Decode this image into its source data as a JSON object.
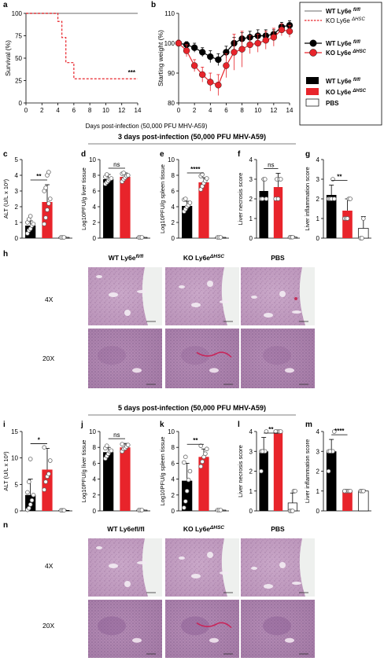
{
  "panel_letters": {
    "a": "a",
    "b": "b",
    "c": "c",
    "d": "d",
    "e": "e",
    "f": "f",
    "g": "g",
    "h": "h",
    "i": "i",
    "j": "j",
    "k": "k",
    "l": "l",
    "m": "m",
    "n": "n"
  },
  "legend": {
    "line_wt": "WT Ly6e",
    "line_wt_sup": "fl/fl",
    "line_ko": "KO Ly6e",
    "line_ko_sup": "ΔHSC",
    "point_wt": "WT Ly6e",
    "point_wt_sup": "fl/fl",
    "point_ko": "KO Ly6e",
    "point_ko_sup": "ΔHSC",
    "bar_wt": "WT Ly6e",
    "bar_wt_sup": "fl/fl",
    "bar_ko": "KO Ly6e",
    "bar_ko_sup": "ΔHSC",
    "bar_pbs": "PBS"
  },
  "shared_xlabel": "Days post-infection (50,000 PFU MHV-A59)",
  "section_titles": {
    "day3": "3 days post-infection (50,000 PFU MHV-A59)",
    "day5": "5 days post-infection (50,000 PFU MHV-A59)"
  },
  "histology": {
    "wt_label": "WT Ly6e",
    "wt_sup": "fl/fl",
    "ko_label": "KO Ly6e",
    "ko_sup": "ΔHSC",
    "pbs_label": "PBS",
    "wt_label_n": "WT Ly6efl/fl",
    "mag_4x": "4X",
    "mag_20x": "20X"
  },
  "colors": {
    "wt": "#000000",
    "ko": "#e8242b",
    "pbs": "#ffffff"
  },
  "chart_data": [
    {
      "panel": "a",
      "type": "line",
      "ylabel": "Survival (%)",
      "xlabel": "Days post-infection (50,000 PFU MHV-A59)",
      "xlim": [
        0,
        14
      ],
      "ylim": [
        0,
        100
      ],
      "xticks": [
        0,
        2,
        4,
        6,
        8,
        10,
        12,
        14
      ],
      "yticks": [
        0,
        25,
        50,
        75,
        100
      ],
      "series": [
        {
          "name": "WT Ly6e fl/fl",
          "style": "solid",
          "color": "#888888",
          "x": [
            0,
            14
          ],
          "y": [
            100,
            100
          ]
        },
        {
          "name": "KO Ly6e ΔHSC",
          "style": "dashed",
          "color": "#e8242b",
          "step": true,
          "x": [
            0,
            4,
            4.5,
            5,
            6,
            14
          ],
          "y": [
            100,
            91,
            73,
            45,
            27,
            27
          ]
        }
      ],
      "annotations": [
        {
          "text": "***",
          "x": 14,
          "y": 27
        }
      ]
    },
    {
      "panel": "b",
      "type": "line",
      "ylabel": "Starting weight (%)",
      "xlabel": "Days post-infection (50,000 PFU MHV-A59)",
      "xlim": [
        0,
        14
      ],
      "ylim": [
        80,
        110
      ],
      "xticks": [
        0,
        2,
        4,
        6,
        8,
        10,
        12,
        14
      ],
      "yticks": [
        80,
        90,
        100,
        110
      ],
      "series": [
        {
          "name": "WT Ly6e fl/fl",
          "color": "#000000",
          "x": [
            0,
            1,
            2,
            3,
            4,
            5,
            6,
            7,
            8,
            9,
            10,
            11,
            12,
            13,
            14
          ],
          "y": [
            100,
            99.5,
            98.5,
            97,
            95.5,
            94.5,
            97,
            100,
            101.5,
            102,
            102.5,
            102.5,
            103,
            105.5,
            106
          ],
          "err": [
            1,
            1,
            1.5,
            1.5,
            2,
            2,
            2,
            2,
            2,
            2,
            2,
            2,
            1.5,
            1.5,
            1.5
          ]
        },
        {
          "name": "KO Ly6e ΔHSC",
          "color": "#e8242b",
          "x": [
            0,
            1,
            2,
            3,
            4,
            5,
            6,
            7,
            8,
            9,
            10,
            11,
            12,
            13,
            14
          ],
          "y": [
            100,
            97.5,
            92.5,
            89.5,
            87,
            86,
            92.5,
            97,
            98,
            99.5,
            100,
            101,
            102,
            104.5,
            104
          ],
          "err": [
            1,
            2,
            2,
            2.5,
            3,
            3.5,
            4,
            6,
            6,
            3,
            3,
            3,
            3,
            2,
            2
          ]
        }
      ]
    },
    {
      "panel": "c",
      "type": "bar",
      "ylabel": "ALT (U/L x 10³)",
      "ylim": [
        0,
        5
      ],
      "yticks": [
        0,
        1,
        2,
        3,
        4,
        5
      ],
      "categories": [
        "WT",
        "KO",
        "PBS"
      ],
      "values": [
        0.8,
        2.3,
        0.05
      ],
      "err": [
        0.3,
        1.1,
        0.05
      ],
      "points": [
        [
          0.3,
          0.5,
          0.6,
          0.8,
          0.9,
          1.0,
          1.2,
          1.4
        ],
        [
          0.9,
          1.3,
          1.8,
          2.2,
          2.5,
          3.0,
          3.2,
          4.0,
          4.2
        ],
        [
          0.05,
          0.05,
          0.05
        ]
      ],
      "sig": "**"
    },
    {
      "panel": "d",
      "type": "bar",
      "ylabel": "Log10PFU/g liver tissue",
      "ylim": [
        0,
        10
      ],
      "yticks": [
        0,
        2,
        4,
        6,
        8,
        10
      ],
      "categories": [
        "WT",
        "KO",
        "PBS"
      ],
      "values": [
        7.5,
        7.8,
        0.1
      ],
      "err": [
        0.6,
        0.5,
        0.05
      ],
      "points": [
        [
          6.9,
          7.1,
          7.3,
          7.5,
          7.6,
          7.8,
          8.1
        ],
        [
          7.2,
          7.5,
          7.7,
          7.9,
          8.0,
          8.2,
          8.3
        ],
        [
          0.1,
          0.1,
          0.1
        ]
      ],
      "sig": "ns"
    },
    {
      "panel": "e",
      "type": "bar",
      "ylabel": "Log10PFU/g spleen tissue",
      "ylim": [
        0,
        10
      ],
      "yticks": [
        0,
        2,
        4,
        6,
        8,
        10
      ],
      "categories": [
        "WT",
        "KO",
        "PBS"
      ],
      "values": [
        4.1,
        7.1,
        0.1
      ],
      "err": [
        0.6,
        0.6,
        0.05
      ],
      "points": [
        [
          3.4,
          3.7,
          4.0,
          4.2,
          4.5,
          4.9,
          5.0
        ],
        [
          6.2,
          6.6,
          7.0,
          7.3,
          7.6,
          7.9,
          8.1
        ],
        [
          0.1,
          0.1,
          0.1
        ]
      ],
      "sig": "****"
    },
    {
      "panel": "f",
      "type": "bar",
      "ylabel": "Liver necrosis score",
      "ylim": [
        0,
        4
      ],
      "yticks": [
        0,
        1,
        2,
        3,
        4
      ],
      "categories": [
        "WT",
        "KO",
        "PBS"
      ],
      "values": [
        2.4,
        2.6,
        0.05
      ],
      "err": [
        0.6,
        0.7,
        0.05
      ],
      "points": [
        [
          2,
          2,
          3,
          3,
          2
        ],
        [
          2,
          3,
          2,
          3,
          3
        ],
        [
          0.05,
          0.05,
          0.05
        ]
      ],
      "sig": "ns"
    },
    {
      "panel": "g",
      "type": "bar",
      "ylabel": "Liver inflammation score",
      "ylim": [
        0,
        4
      ],
      "yticks": [
        0,
        1,
        2,
        3,
        4
      ],
      "categories": [
        "WT",
        "KO",
        "PBS"
      ],
      "values": [
        2.2,
        1.4,
        0.5
      ],
      "err": [
        0.5,
        0.6,
        0.6
      ],
      "points": [
        [
          2,
          2,
          2,
          3,
          2
        ],
        [
          1,
          1,
          1,
          2,
          2
        ],
        [
          0,
          0,
          1
        ]
      ],
      "sig": "**"
    },
    {
      "panel": "i",
      "type": "bar",
      "ylabel": "ALT (U/L x 10³)",
      "ylim": [
        0,
        15
      ],
      "yticks": [
        0,
        5,
        10,
        15
      ],
      "categories": [
        "WT",
        "KO",
        "PBS"
      ],
      "values": [
        3.0,
        7.8,
        0.1
      ],
      "err": [
        3.0,
        4.0,
        0.1
      ],
      "points": [
        [
          0.2,
          0.5,
          1.2,
          2.0,
          3.0,
          3.5,
          5.5,
          9.8
        ],
        [
          4.0,
          5.5,
          6.5,
          7.0,
          9.5,
          12.0
        ],
        [
          0.1,
          0.1,
          0.1
        ]
      ],
      "sig": "*"
    },
    {
      "panel": "j",
      "type": "bar",
      "ylabel": "Log10PFU/g liver tissue",
      "ylim": [
        0,
        10
      ],
      "yticks": [
        0,
        2,
        4,
        6,
        8,
        10
      ],
      "categories": [
        "WT",
        "KO",
        "PBS"
      ],
      "values": [
        7.4,
        8.0,
        0.1
      ],
      "err": [
        0.6,
        0.5,
        0.05
      ],
      "points": [
        [
          6.6,
          6.9,
          7.2,
          7.5,
          7.6,
          7.9,
          8.2
        ],
        [
          7.5,
          7.8,
          7.9,
          8.1,
          8.3,
          8.4
        ],
        [
          0.1,
          0.1,
          0.1
        ]
      ],
      "sig": "ns"
    },
    {
      "panel": "k",
      "type": "bar",
      "ylabel": "Log10PFU/g spleen tissue",
      "ylim": [
        0,
        10
      ],
      "yticks": [
        0,
        2,
        4,
        6,
        8,
        10
      ],
      "categories": [
        "WT",
        "KO",
        "PBS"
      ],
      "values": [
        3.8,
        6.8,
        0.1
      ],
      "err": [
        2.2,
        1.0,
        0.05
      ],
      "points": [
        [
          0.4,
          1.2,
          2.5,
          3.9,
          5.0,
          6.1,
          6.8
        ],
        [
          5.6,
          6.2,
          6.8,
          7.2,
          7.8,
          8.2
        ],
        [
          0.1,
          0.1,
          0.1
        ]
      ],
      "sig": "**"
    },
    {
      "panel": "l",
      "type": "bar",
      "ylabel": "Liver necrosis score",
      "ylim": [
        0,
        4
      ],
      "yticks": [
        0,
        1,
        2,
        3,
        4
      ],
      "categories": [
        "WT",
        "KO",
        "PBS"
      ],
      "values": [
        3.0,
        4.0,
        0.4
      ],
      "err": [
        0.7,
        0.05,
        0.5
      ],
      "points": [
        [
          2,
          3,
          3,
          3,
          4,
          3,
          3
        ],
        [
          4,
          4,
          4,
          4,
          4,
          4
        ],
        [
          0,
          0,
          0,
          1,
          1
        ]
      ],
      "sig": "**"
    },
    {
      "panel": "m",
      "type": "bar",
      "ylabel": "Liver inflammation score",
      "ylim": [
        0,
        4
      ],
      "yticks": [
        0,
        1,
        2,
        3,
        4
      ],
      "categories": [
        "WT",
        "KO",
        "PBS"
      ],
      "values": [
        3.0,
        1.0,
        1.0
      ],
      "err": [
        0.6,
        0.05,
        0.05
      ],
      "points": [
        [
          2,
          3,
          3,
          3,
          4,
          3,
          3
        ],
        [
          1,
          1,
          1,
          1,
          1,
          1
        ],
        [
          1,
          1,
          1
        ]
      ],
      "sig": "****"
    }
  ]
}
